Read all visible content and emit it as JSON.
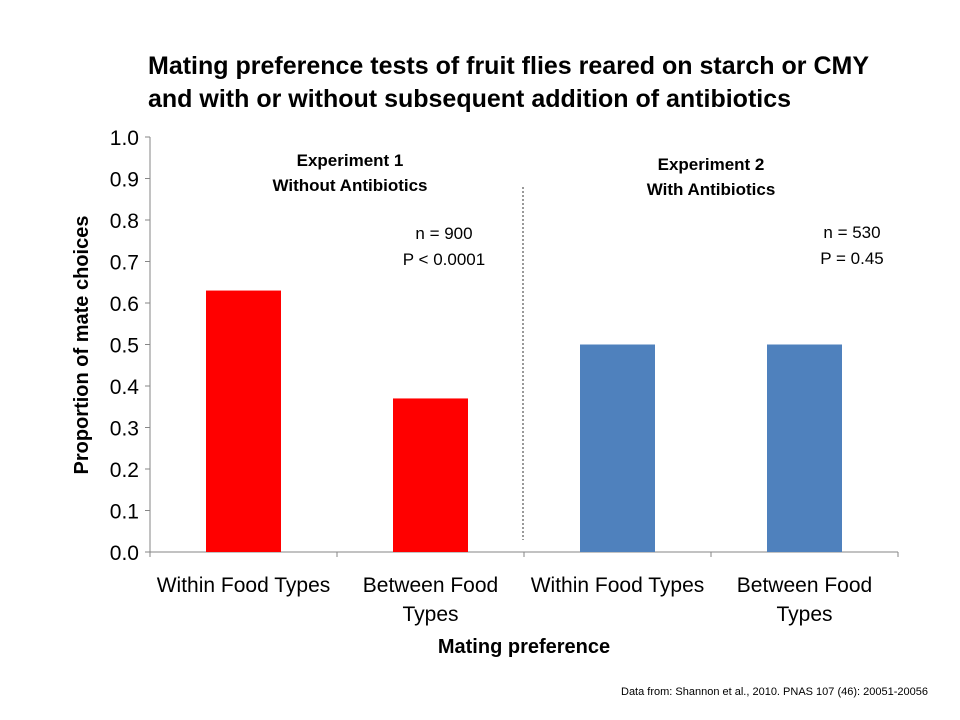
{
  "chart_data": {
    "type": "bar",
    "title": "Mating preference tests of fruit flies reared on starch or CMY\nand with or without subsequent addition of antibiotics",
    "xlabel": "Mating preference",
    "ylabel": "Proportion of mate choices",
    "ylim": [
      0,
      1.0
    ],
    "yticks": [
      "0.0",
      "0.1",
      "0.2",
      "0.3",
      "0.4",
      "0.5",
      "0.6",
      "0.7",
      "0.8",
      "0.9",
      "1.0"
    ],
    "grid": false,
    "categories": [
      [
        "Within Food Types"
      ],
      [
        "Between Food",
        "Types"
      ],
      [
        "Within Food Types"
      ],
      [
        "Between Food",
        "Types"
      ]
    ],
    "values": [
      0.63,
      0.37,
      0.5,
      0.5
    ],
    "bar_colors": [
      "#ff0000",
      "#ff0000",
      "#4f81bd",
      "#4f81bd"
    ],
    "groups": [
      {
        "label": [
          "Experiment 1",
          "Without Antibiotics"
        ],
        "stats": [
          "n = 900",
          "P < 0.0001"
        ]
      },
      {
        "label": [
          "Experiment 2",
          "With Antibiotics"
        ],
        "stats": [
          "n = 530",
          "P = 0.45"
        ]
      }
    ]
  },
  "source_note": "Data from: Shannon et al., 2010.  PNAS 107 (46): 20051-20056"
}
